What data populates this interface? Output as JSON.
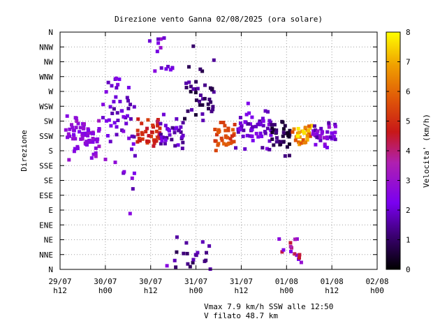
{
  "chart_data": {
    "type": "scatter",
    "title": "Direzione vento Ganna 02/08/2025 (ora solare)",
    "ylabel": "Direzione",
    "colorbar_label": "Velocita' (km/h)",
    "y_categories": [
      "N",
      "NNE",
      "NE",
      "ENE",
      "E",
      "ESE",
      "SE",
      "SSE",
      "S",
      "SSW",
      "SW",
      "WSW",
      "W",
      "WNW",
      "NW",
      "NNW",
      "N"
    ],
    "x_ticks": [
      {
        "line1": "29/07",
        "line2": "h12"
      },
      {
        "line1": "30/07",
        "line2": "h00"
      },
      {
        "line1": "30/07",
        "line2": "h12"
      },
      {
        "line1": "31/07",
        "line2": "h00"
      },
      {
        "line1": "31/07",
        "line2": "h12"
      },
      {
        "line1": "01/08",
        "line2": "h00"
      },
      {
        "line1": "01/08",
        "line2": "h12"
      },
      {
        "line1": "02/08",
        "line2": "h00"
      }
    ],
    "x_range_hours": [
      0,
      84
    ],
    "y_range_deg": [
      0,
      360
    ],
    "colorbar_ticks": [
      "0",
      "1",
      "2",
      "3",
      "4",
      "5",
      "6",
      "7",
      "8"
    ],
    "colorbar_range": [
      0,
      8
    ],
    "grid": true,
    "clusters": [
      {
        "t0": 1.5,
        "t1": 10.5,
        "dir": 200,
        "spread": 45,
        "v0": 2.3,
        "v1": 3.2,
        "n": 70
      },
      {
        "t0": 11,
        "t1": 20,
        "dir": 250,
        "spread": 75,
        "v0": 1.6,
        "v1": 2.6,
        "n": 35
      },
      {
        "t0": 20.5,
        "t1": 26.5,
        "dir": 205,
        "spread": 35,
        "v0": 4.2,
        "v1": 5.4,
        "n": 40
      },
      {
        "t0": 26.5,
        "t1": 33,
        "dir": 210,
        "spread": 35,
        "v0": 1.3,
        "v1": 2.4,
        "n": 35
      },
      {
        "t0": 33,
        "t1": 41,
        "dir": 260,
        "spread": 90,
        "v0": 0.5,
        "v1": 1.8,
        "n": 40
      },
      {
        "t0": 41,
        "t1": 46.5,
        "dir": 205,
        "spread": 30,
        "v0": 5.0,
        "v1": 6.0,
        "n": 35
      },
      {
        "t0": 46.5,
        "t1": 56,
        "dir": 215,
        "spread": 45,
        "v0": 1.4,
        "v1": 2.6,
        "n": 60
      },
      {
        "t0": 56,
        "t1": 61,
        "dir": 200,
        "spread": 40,
        "v0": 0.3,
        "v1": 1.4,
        "n": 35
      },
      {
        "t0": 61.5,
        "t1": 67,
        "dir": 205,
        "spread": 25,
        "v0": 5.3,
        "v1": 7.9,
        "n": 35
      },
      {
        "t0": 67,
        "t1": 73,
        "dir": 205,
        "spread": 25,
        "v0": 1.5,
        "v1": 3.0,
        "n": 40
      },
      {
        "t0": 12,
        "t1": 20,
        "dir": 185,
        "spread": 120,
        "v0": 1.5,
        "v1": 3.0,
        "n": 20
      },
      {
        "t0": 30,
        "t1": 40,
        "dir": 20,
        "spread": 40,
        "v0": 0.8,
        "v1": 2.0,
        "n": 20
      },
      {
        "t0": 58,
        "t1": 64,
        "dir": 30,
        "spread": 60,
        "v0": 2.0,
        "v1": 4.5,
        "n": 15
      },
      {
        "t0": 22,
        "t1": 30,
        "dir": 320,
        "spread": 60,
        "v0": 1.5,
        "v1": 3.0,
        "n": 15
      }
    ],
    "peak": {
      "t": 63,
      "dir": 202.5,
      "v": 7.9
    }
  },
  "footer": {
    "line1": "Vmax 7.9 km/h SSW alle 12:50",
    "line2": "V filato 48.7 km"
  }
}
